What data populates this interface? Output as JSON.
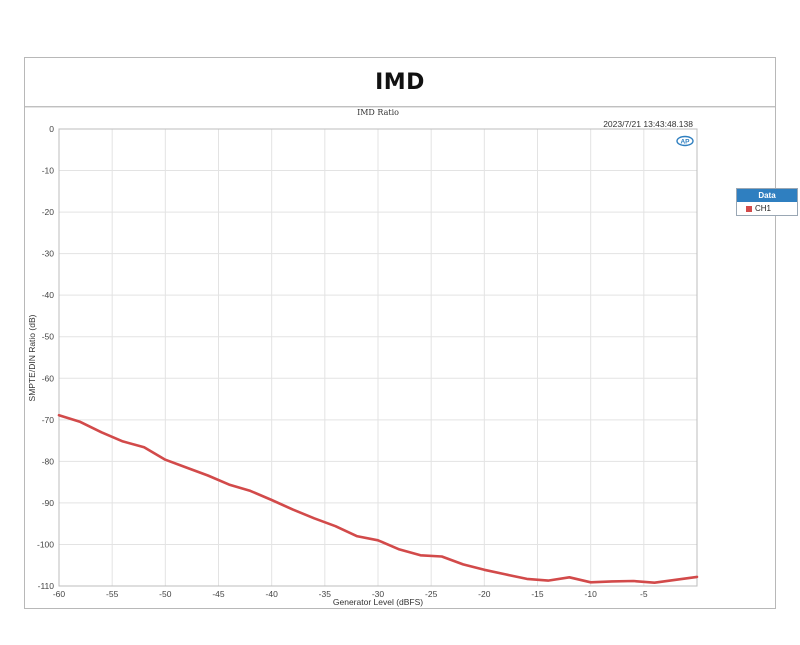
{
  "header": {
    "title": "IMD"
  },
  "colors": {
    "series": "#d24a4a",
    "grid": "#e3e3e3",
    "legend_header": "#2f7fc0"
  },
  "icons": {
    "logo": "ap-logo-icon"
  },
  "chart_data": {
    "type": "line",
    "title": "IMD Ratio",
    "timestamp": "2023/7/21 13:43:48.138",
    "xlabel": "Generator Level (dBFS)",
    "ylabel": "SMPTE/DIN Ratio (dB)",
    "xlim": [
      -60,
      0
    ],
    "ylim": [
      -110,
      0
    ],
    "xticks": [
      -60,
      -55,
      -50,
      -45,
      -40,
      -35,
      -30,
      -25,
      -20,
      -15,
      -10,
      -5
    ],
    "yticks": [
      0,
      -10,
      -20,
      -30,
      -40,
      -50,
      -60,
      -70,
      -80,
      -90,
      -100,
      -110
    ],
    "grid": true,
    "legend": {
      "title": "Data",
      "position": "right"
    },
    "series": [
      {
        "name": "CH1",
        "x": [
          -60,
          -58,
          -56,
          -54,
          -52,
          -50,
          -48,
          -46,
          -44,
          -42,
          -40,
          -38,
          -36,
          -34,
          -32,
          -30,
          -28,
          -26,
          -24,
          -22,
          -20,
          -18,
          -16,
          -14,
          -12,
          -10,
          -8,
          -6,
          -4,
          -2,
          0
        ],
        "y": [
          -68.9,
          -70.5,
          -73.0,
          -75.2,
          -76.6,
          -79.6,
          -81.5,
          -83.4,
          -85.6,
          -87.1,
          -89.3,
          -91.6,
          -93.7,
          -95.6,
          -98.0,
          -99.0,
          -101.2,
          -102.6,
          -102.9,
          -104.8,
          -106.1,
          -107.2,
          -108.3,
          -108.7,
          -107.9,
          -109.1,
          -108.9,
          -108.8,
          -109.2,
          -108.5,
          -107.8
        ]
      }
    ]
  }
}
